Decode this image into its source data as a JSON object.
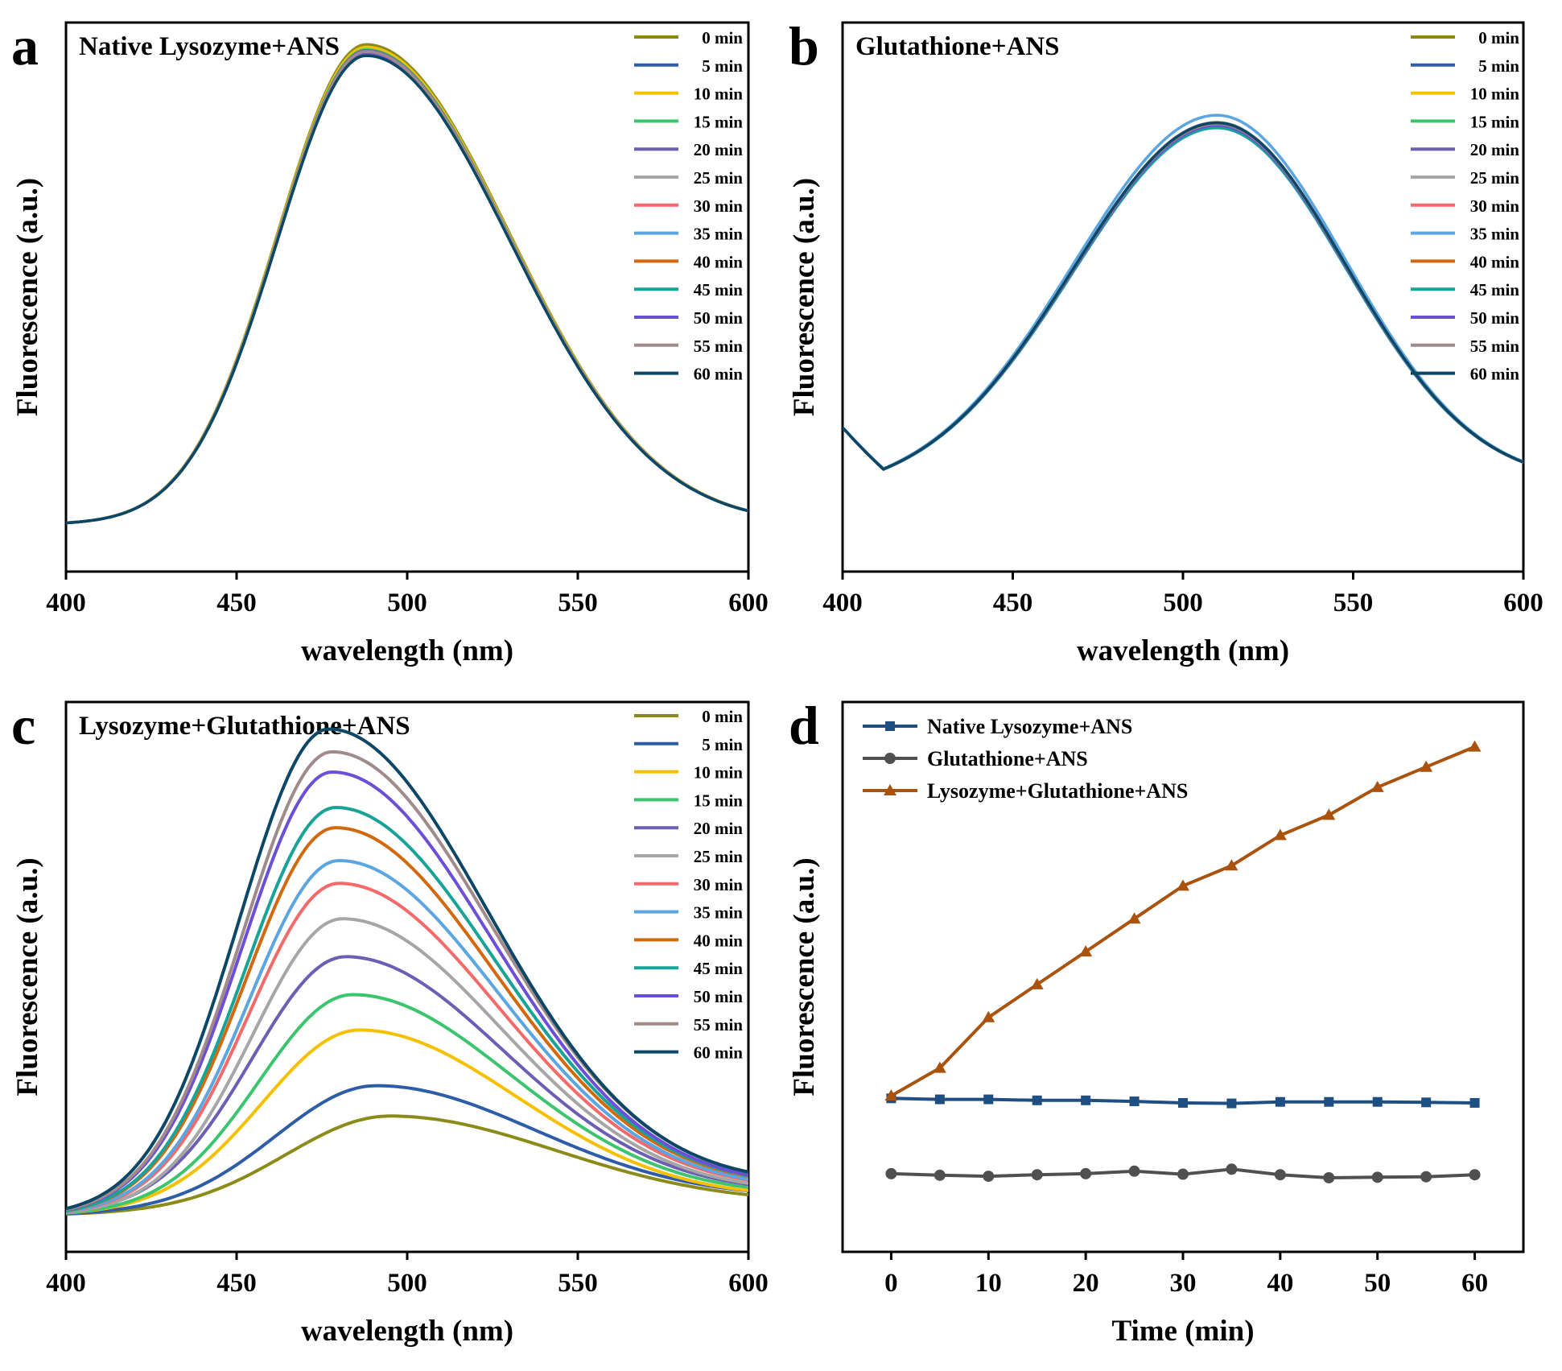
{
  "figure": {
    "panels": [
      {
        "label": "a",
        "title": "Native Lysozyme+ANS"
      },
      {
        "label": "b",
        "title": "Glutathione+ANS"
      },
      {
        "label": "c",
        "title": "Lysozyme+Glutathione+ANS"
      },
      {
        "label": "d",
        "title": ""
      }
    ]
  },
  "chart_data": [
    {
      "panel": "a",
      "type": "line",
      "title": "Native Lysozyme+ANS",
      "xlabel": "wavelength (nm)",
      "ylabel": "Fluorescence (a.u.)",
      "xlim": [
        400,
        600
      ],
      "ylim": [
        0,
        100
      ],
      "xticks": [
        400,
        450,
        500,
        550,
        600
      ],
      "legend_position": "top-right",
      "series": [
        {
          "name": "0 min",
          "color": "#8b8b1a",
          "peak_x": 488,
          "peak": 100.0,
          "base": 5,
          "end": 5,
          "sigma_l": 26,
          "sigma_r": 42
        },
        {
          "name": "5 min",
          "color": "#2e5da8",
          "peak_x": 488,
          "peak": 98.5,
          "base": 5,
          "end": 5,
          "sigma_l": 26,
          "sigma_r": 42
        },
        {
          "name": "10 min",
          "color": "#f5c000",
          "peak_x": 488,
          "peak": 99.5,
          "base": 5,
          "end": 5,
          "sigma_l": 26,
          "sigma_r": 42
        },
        {
          "name": "15 min",
          "color": "#3cc46e",
          "peak_x": 488,
          "peak": 99.0,
          "base": 5,
          "end": 5,
          "sigma_l": 26,
          "sigma_r": 42
        },
        {
          "name": "20 min",
          "color": "#6a5fb3",
          "peak_x": 488,
          "peak": 98.8,
          "base": 5,
          "end": 5,
          "sigma_l": 26,
          "sigma_r": 42
        },
        {
          "name": "25 min",
          "color": "#a6a6a6",
          "peak_x": 488,
          "peak": 98.6,
          "base": 5,
          "end": 5,
          "sigma_l": 26,
          "sigma_r": 42
        },
        {
          "name": "30 min",
          "color": "#f46a6a",
          "peak_x": 488,
          "peak": 98.4,
          "base": 5,
          "end": 5,
          "sigma_l": 26,
          "sigma_r": 42
        },
        {
          "name": "35 min",
          "color": "#5ba5e0",
          "peak_x": 488,
          "peak": 98.2,
          "base": 5,
          "end": 5,
          "sigma_l": 26,
          "sigma_r": 42
        },
        {
          "name": "40 min",
          "color": "#d2690e",
          "peak_x": 488,
          "peak": 98.6,
          "base": 5,
          "end": 5,
          "sigma_l": 26,
          "sigma_r": 42
        },
        {
          "name": "45 min",
          "color": "#17a398",
          "peak_x": 488,
          "peak": 97.8,
          "base": 5,
          "end": 5,
          "sigma_l": 26,
          "sigma_r": 42
        },
        {
          "name": "50 min",
          "color": "#6b4fd6",
          "peak_x": 488,
          "peak": 98.4,
          "base": 5,
          "end": 5,
          "sigma_l": 26,
          "sigma_r": 42
        },
        {
          "name": "55 min",
          "color": "#a08a8a",
          "peak_x": 488,
          "peak": 98.6,
          "base": 5,
          "end": 5,
          "sigma_l": 26,
          "sigma_r": 42
        },
        {
          "name": "60 min",
          "color": "#0c4766",
          "peak_x": 488,
          "peak": 97.8,
          "base": 5,
          "end": 5,
          "sigma_l": 26,
          "sigma_r": 42
        }
      ]
    },
    {
      "panel": "b",
      "type": "line",
      "title": "Glutathione+ANS",
      "xlabel": "wavelength (nm)",
      "ylabel": "Fluorescence (a.u.)",
      "xlim": [
        400,
        600
      ],
      "ylim": [
        0,
        100
      ],
      "xticks": [
        400,
        450,
        500,
        550,
        600
      ],
      "legend_position": "top-right",
      "series": [
        {
          "name": "0 min",
          "color": "#8b8b1a",
          "peak_x": 510,
          "peak": 84.3,
          "base": 11,
          "end": 13,
          "sigma_l": 42,
          "sigma_r": 38
        },
        {
          "name": "5 min",
          "color": "#2e5da8",
          "peak_x": 510,
          "peak": 84.1,
          "base": 11,
          "end": 13,
          "sigma_l": 42,
          "sigma_r": 38
        },
        {
          "name": "10 min",
          "color": "#f5c000",
          "peak_x": 510,
          "peak": 84.0,
          "base": 11,
          "end": 13,
          "sigma_l": 42,
          "sigma_r": 38
        },
        {
          "name": "15 min",
          "color": "#3cc46e",
          "peak_x": 510,
          "peak": 83.8,
          "base": 11,
          "end": 13,
          "sigma_l": 42,
          "sigma_r": 38
        },
        {
          "name": "20 min",
          "color": "#6a5fb3",
          "peak_x": 510,
          "peak": 84.2,
          "base": 11,
          "end": 13,
          "sigma_l": 42,
          "sigma_r": 38
        },
        {
          "name": "25 min",
          "color": "#a6a6a6",
          "peak_x": 510,
          "peak": 84.6,
          "base": 11,
          "end": 13,
          "sigma_l": 42,
          "sigma_r": 38
        },
        {
          "name": "30 min",
          "color": "#f46a6a",
          "peak_x": 510,
          "peak": 84.0,
          "base": 11,
          "end": 13,
          "sigma_l": 42,
          "sigma_r": 38
        },
        {
          "name": "35 min",
          "color": "#5ba5e0",
          "peak_x": 510,
          "peak": 86.0,
          "base": 11,
          "end": 13,
          "sigma_l": 42,
          "sigma_r": 38
        },
        {
          "name": "40 min",
          "color": "#d2690e",
          "peak_x": 510,
          "peak": 84.2,
          "base": 11,
          "end": 13,
          "sigma_l": 42,
          "sigma_r": 38
        },
        {
          "name": "45 min",
          "color": "#17a398",
          "peak_x": 510,
          "peak": 83.5,
          "base": 11,
          "end": 13,
          "sigma_l": 42,
          "sigma_r": 38
        },
        {
          "name": "50 min",
          "color": "#6b4fd6",
          "peak_x": 510,
          "peak": 84.0,
          "base": 11,
          "end": 13,
          "sigma_l": 42,
          "sigma_r": 38
        },
        {
          "name": "55 min",
          "color": "#a08a8a",
          "peak_x": 510,
          "peak": 84.3,
          "base": 11,
          "end": 13,
          "sigma_l": 42,
          "sigma_r": 38
        },
        {
          "name": "60 min",
          "color": "#0c4766",
          "peak_x": 510,
          "peak": 84.5,
          "base": 11,
          "end": 13,
          "sigma_l": 42,
          "sigma_r": 38
        }
      ]
    },
    {
      "panel": "c",
      "type": "line",
      "title": "Lysozyme+Glutathione+ANS",
      "xlabel": "wavelength (nm)",
      "ylabel": "Fluorescence (a.u.)",
      "xlim": [
        400,
        600
      ],
      "ylim": [
        0,
        100
      ],
      "xticks": [
        400,
        450,
        500,
        550,
        600
      ],
      "legend_position": "top-right",
      "series": [
        {
          "name": "0 min",
          "color": "#8b8b1a",
          "peak_x": 495,
          "peak": 22.5,
          "base": 3,
          "end": 5,
          "sigma_l": 30,
          "sigma_r": 50
        },
        {
          "name": "5 min",
          "color": "#2e5da8",
          "peak_x": 491,
          "peak": 28.5,
          "base": 3,
          "end": 6,
          "sigma_l": 29,
          "sigma_r": 48
        },
        {
          "name": "10 min",
          "color": "#f5c000",
          "peak_x": 486,
          "peak": 39.5,
          "base": 3,
          "end": 6,
          "sigma_l": 28,
          "sigma_r": 47
        },
        {
          "name": "15 min",
          "color": "#3cc46e",
          "peak_x": 484,
          "peak": 46.5,
          "base": 3,
          "end": 6.5,
          "sigma_l": 27,
          "sigma_r": 47
        },
        {
          "name": "20 min",
          "color": "#6a5fb3",
          "peak_x": 482,
          "peak": 54.0,
          "base": 3,
          "end": 7,
          "sigma_l": 27,
          "sigma_r": 47
        },
        {
          "name": "25 min",
          "color": "#a6a6a6",
          "peak_x": 481,
          "peak": 61.5,
          "base": 3,
          "end": 7,
          "sigma_l": 26,
          "sigma_r": 47
        },
        {
          "name": "30 min",
          "color": "#f46a6a",
          "peak_x": 480,
          "peak": 68.5,
          "base": 3,
          "end": 7.5,
          "sigma_l": 26,
          "sigma_r": 47
        },
        {
          "name": "35 min",
          "color": "#5ba5e0",
          "peak_x": 480,
          "peak": 73.0,
          "base": 3,
          "end": 7.5,
          "sigma_l": 26,
          "sigma_r": 47
        },
        {
          "name": "40 min",
          "color": "#d2690e",
          "peak_x": 479,
          "peak": 79.5,
          "base": 3,
          "end": 8,
          "sigma_l": 26,
          "sigma_r": 47
        },
        {
          "name": "45 min",
          "color": "#17a398",
          "peak_x": 479,
          "peak": 83.5,
          "base": 3,
          "end": 8,
          "sigma_l": 26,
          "sigma_r": 47
        },
        {
          "name": "50 min",
          "color": "#6b4fd6",
          "peak_x": 478,
          "peak": 90.5,
          "base": 3,
          "end": 8,
          "sigma_l": 26,
          "sigma_r": 47
        },
        {
          "name": "55 min",
          "color": "#a08a8a",
          "peak_x": 478,
          "peak": 94.5,
          "base": 3,
          "end": 8.5,
          "sigma_l": 26,
          "sigma_r": 47
        },
        {
          "name": "60 min",
          "color": "#0c4766",
          "peak_x": 477,
          "peak": 99.0,
          "base": 3,
          "end": 8.5,
          "sigma_l": 26,
          "sigma_r": 47
        }
      ]
    },
    {
      "panel": "d",
      "type": "line",
      "title": "",
      "xlabel": "Time (min)",
      "ylabel": "Fluorescence (a.u.)",
      "xlim": [
        -5,
        65
      ],
      "ylim": [
        0,
        100
      ],
      "xticks": [
        0,
        10,
        20,
        30,
        40,
        50,
        60
      ],
      "legend_position": "top-left",
      "x": [
        0,
        5,
        10,
        15,
        20,
        25,
        30,
        35,
        40,
        45,
        50,
        55,
        60
      ],
      "series": [
        {
          "name": "Native Lysozyme+ANS",
          "color": "#1f4e82",
          "marker": "square",
          "values": [
            26.0,
            25.8,
            25.8,
            25.6,
            25.6,
            25.4,
            25.1,
            25.0,
            25.3,
            25.3,
            25.3,
            25.2,
            25.1
          ]
        },
        {
          "name": "Glutathione+ANS",
          "color": "#505050",
          "marker": "circle",
          "values": [
            11.1,
            10.8,
            10.6,
            10.9,
            11.1,
            11.6,
            11.0,
            12.0,
            10.9,
            10.3,
            10.4,
            10.5,
            10.9
          ]
        },
        {
          "name": "Lysozyme+Glutathione+ANS",
          "color": "#a9530f",
          "marker": "triangle",
          "values": [
            26.5,
            32.0,
            42.0,
            48.5,
            55.0,
            61.5,
            68.0,
            72.0,
            78.0,
            82.0,
            87.5,
            91.5,
            95.5
          ]
        }
      ]
    }
  ]
}
